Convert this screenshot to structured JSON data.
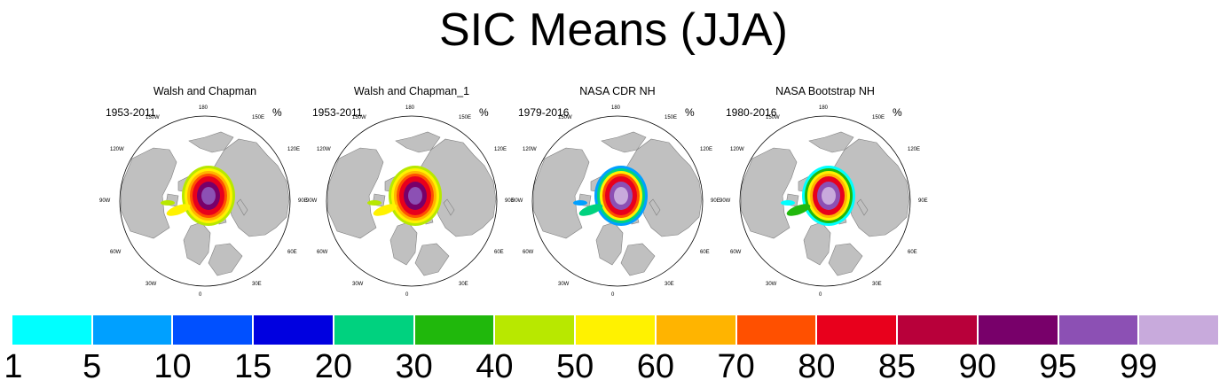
{
  "title": "SIC Means (JJA)",
  "panels": [
    {
      "title": "Walsh and Chapman",
      "period": "1953-2011",
      "units": "%",
      "style": "wc"
    },
    {
      "title": "Walsh and Chapman_1",
      "period": "1953-2011",
      "units": "%",
      "style": "wc"
    },
    {
      "title": "NASA CDR NH",
      "period": "1979-2016",
      "units": "%",
      "style": "cdr"
    },
    {
      "title": "NASA Bootstrap NH",
      "period": "1980-2016",
      "units": "%",
      "style": "bt"
    }
  ],
  "longitude_labels": [
    "180",
    "150E",
    "120E",
    "90E",
    "60E",
    "30E",
    "0",
    "30W",
    "60W",
    "90W",
    "120W",
    "150W"
  ],
  "colorbar": {
    "colors": [
      "#00ffff",
      "#00a0ff",
      "#0050ff",
      "#0000e0",
      "#00d27f",
      "#20b80c",
      "#b8e800",
      "#fff200",
      "#ffb400",
      "#ff5000",
      "#e8001c",
      "#b8003a",
      "#78006a",
      "#8c50b4",
      "#c8aadc"
    ],
    "labels": [
      "1",
      "5",
      "10",
      "15",
      "20",
      "30",
      "40",
      "50",
      "60",
      "70",
      "80",
      "85",
      "90",
      "95",
      "99"
    ]
  }
}
